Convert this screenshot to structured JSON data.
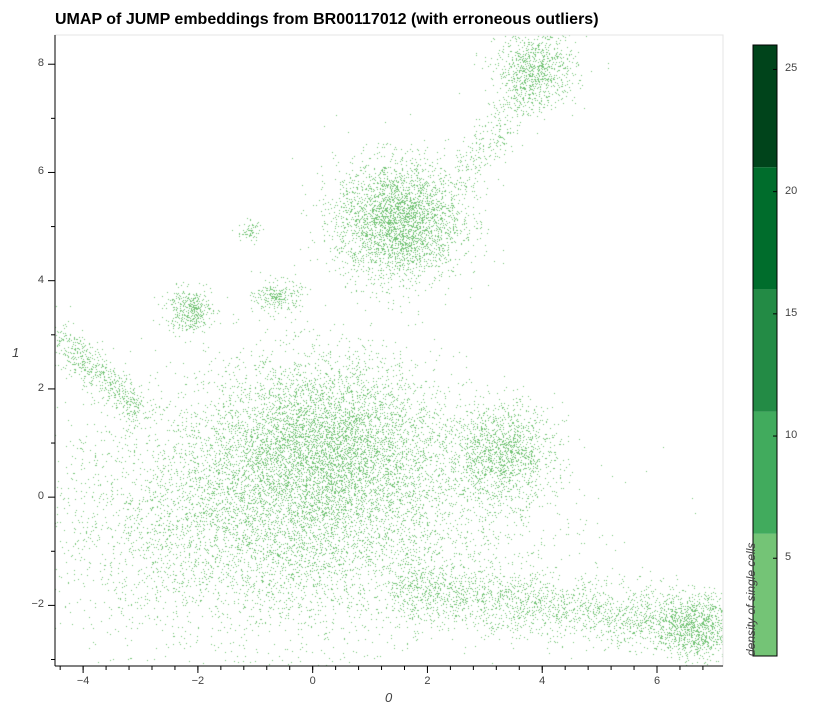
{
  "chart_data": {
    "type": "scatter",
    "title": "UMAP of JUMP embeddings from BR00117012 (with erroneous outliers)",
    "xlabel": "0",
    "ylabel": "1",
    "xlim": [
      -4.49,
      7.15
    ],
    "ylim": [
      -3.12,
      8.54
    ],
    "xticks": [
      -4,
      -2,
      0,
      2,
      4,
      6
    ],
    "yticks": [
      -2,
      0,
      2,
      4,
      6,
      8
    ],
    "grid": false,
    "point_color": "#74c476",
    "clusters": [
      {
        "name": "main-body",
        "cx": -0.5,
        "cy": -0.4,
        "sx": 2.0,
        "sy": 1.1,
        "n": 60000
      },
      {
        "name": "upper-lobe",
        "cx": 0.2,
        "cy": 1.0,
        "sx": 1.0,
        "sy": 0.8,
        "n": 14000
      },
      {
        "name": "top-cluster",
        "cx": 1.5,
        "cy": 5.1,
        "sx": 0.55,
        "sy": 0.55,
        "n": 9000
      },
      {
        "name": "right-cluster",
        "cx": 3.3,
        "cy": 0.8,
        "sx": 0.45,
        "sy": 0.45,
        "n": 4000
      },
      {
        "name": "top-right-cluster",
        "cx": 3.9,
        "cy": 7.9,
        "sx": 0.35,
        "sy": 0.35,
        "n": 2500
      },
      {
        "name": "left-small",
        "cx": -2.15,
        "cy": 3.45,
        "sx": 0.2,
        "sy": 0.2,
        "n": 1200
      },
      {
        "name": "mid-small",
        "cx": -0.6,
        "cy": 3.7,
        "sx": 0.2,
        "sy": 0.15,
        "n": 700
      },
      {
        "name": "upper-small",
        "cx": -1.1,
        "cy": 4.9,
        "sx": 0.1,
        "sy": 0.1,
        "n": 200
      },
      {
        "name": "tail-end",
        "cx": 6.7,
        "cy": -2.4,
        "sx": 0.35,
        "sy": 0.3,
        "n": 3000
      }
    ],
    "arms": [
      {
        "name": "left-arm",
        "from": [
          -4.4,
          2.9
        ],
        "to": [
          -3.0,
          1.6
        ],
        "spread": 0.2,
        "n": 1500
      },
      {
        "name": "right-tail",
        "from": [
          1.5,
          -1.7
        ],
        "to": [
          6.5,
          -2.3
        ],
        "spread": 0.3,
        "n": 5000
      },
      {
        "name": "top-bridge",
        "from": [
          2.5,
          5.8
        ],
        "to": [
          3.8,
          7.5
        ],
        "spread": 0.25,
        "n": 800
      }
    ],
    "colorbar": {
      "label": "density of single cells",
      "range": [
        1,
        26
      ],
      "ticks": [
        5,
        10,
        15,
        20,
        25
      ],
      "bins": [
        {
          "from": 1,
          "to": 6,
          "color": "#74c476"
        },
        {
          "from": 6,
          "to": 11,
          "color": "#41ab5d"
        },
        {
          "from": 11,
          "to": 16,
          "color": "#238b45"
        },
        {
          "from": 16,
          "to": 21,
          "color": "#006d2c"
        },
        {
          "from": 21,
          "to": 26,
          "color": "#00441b"
        }
      ]
    }
  }
}
